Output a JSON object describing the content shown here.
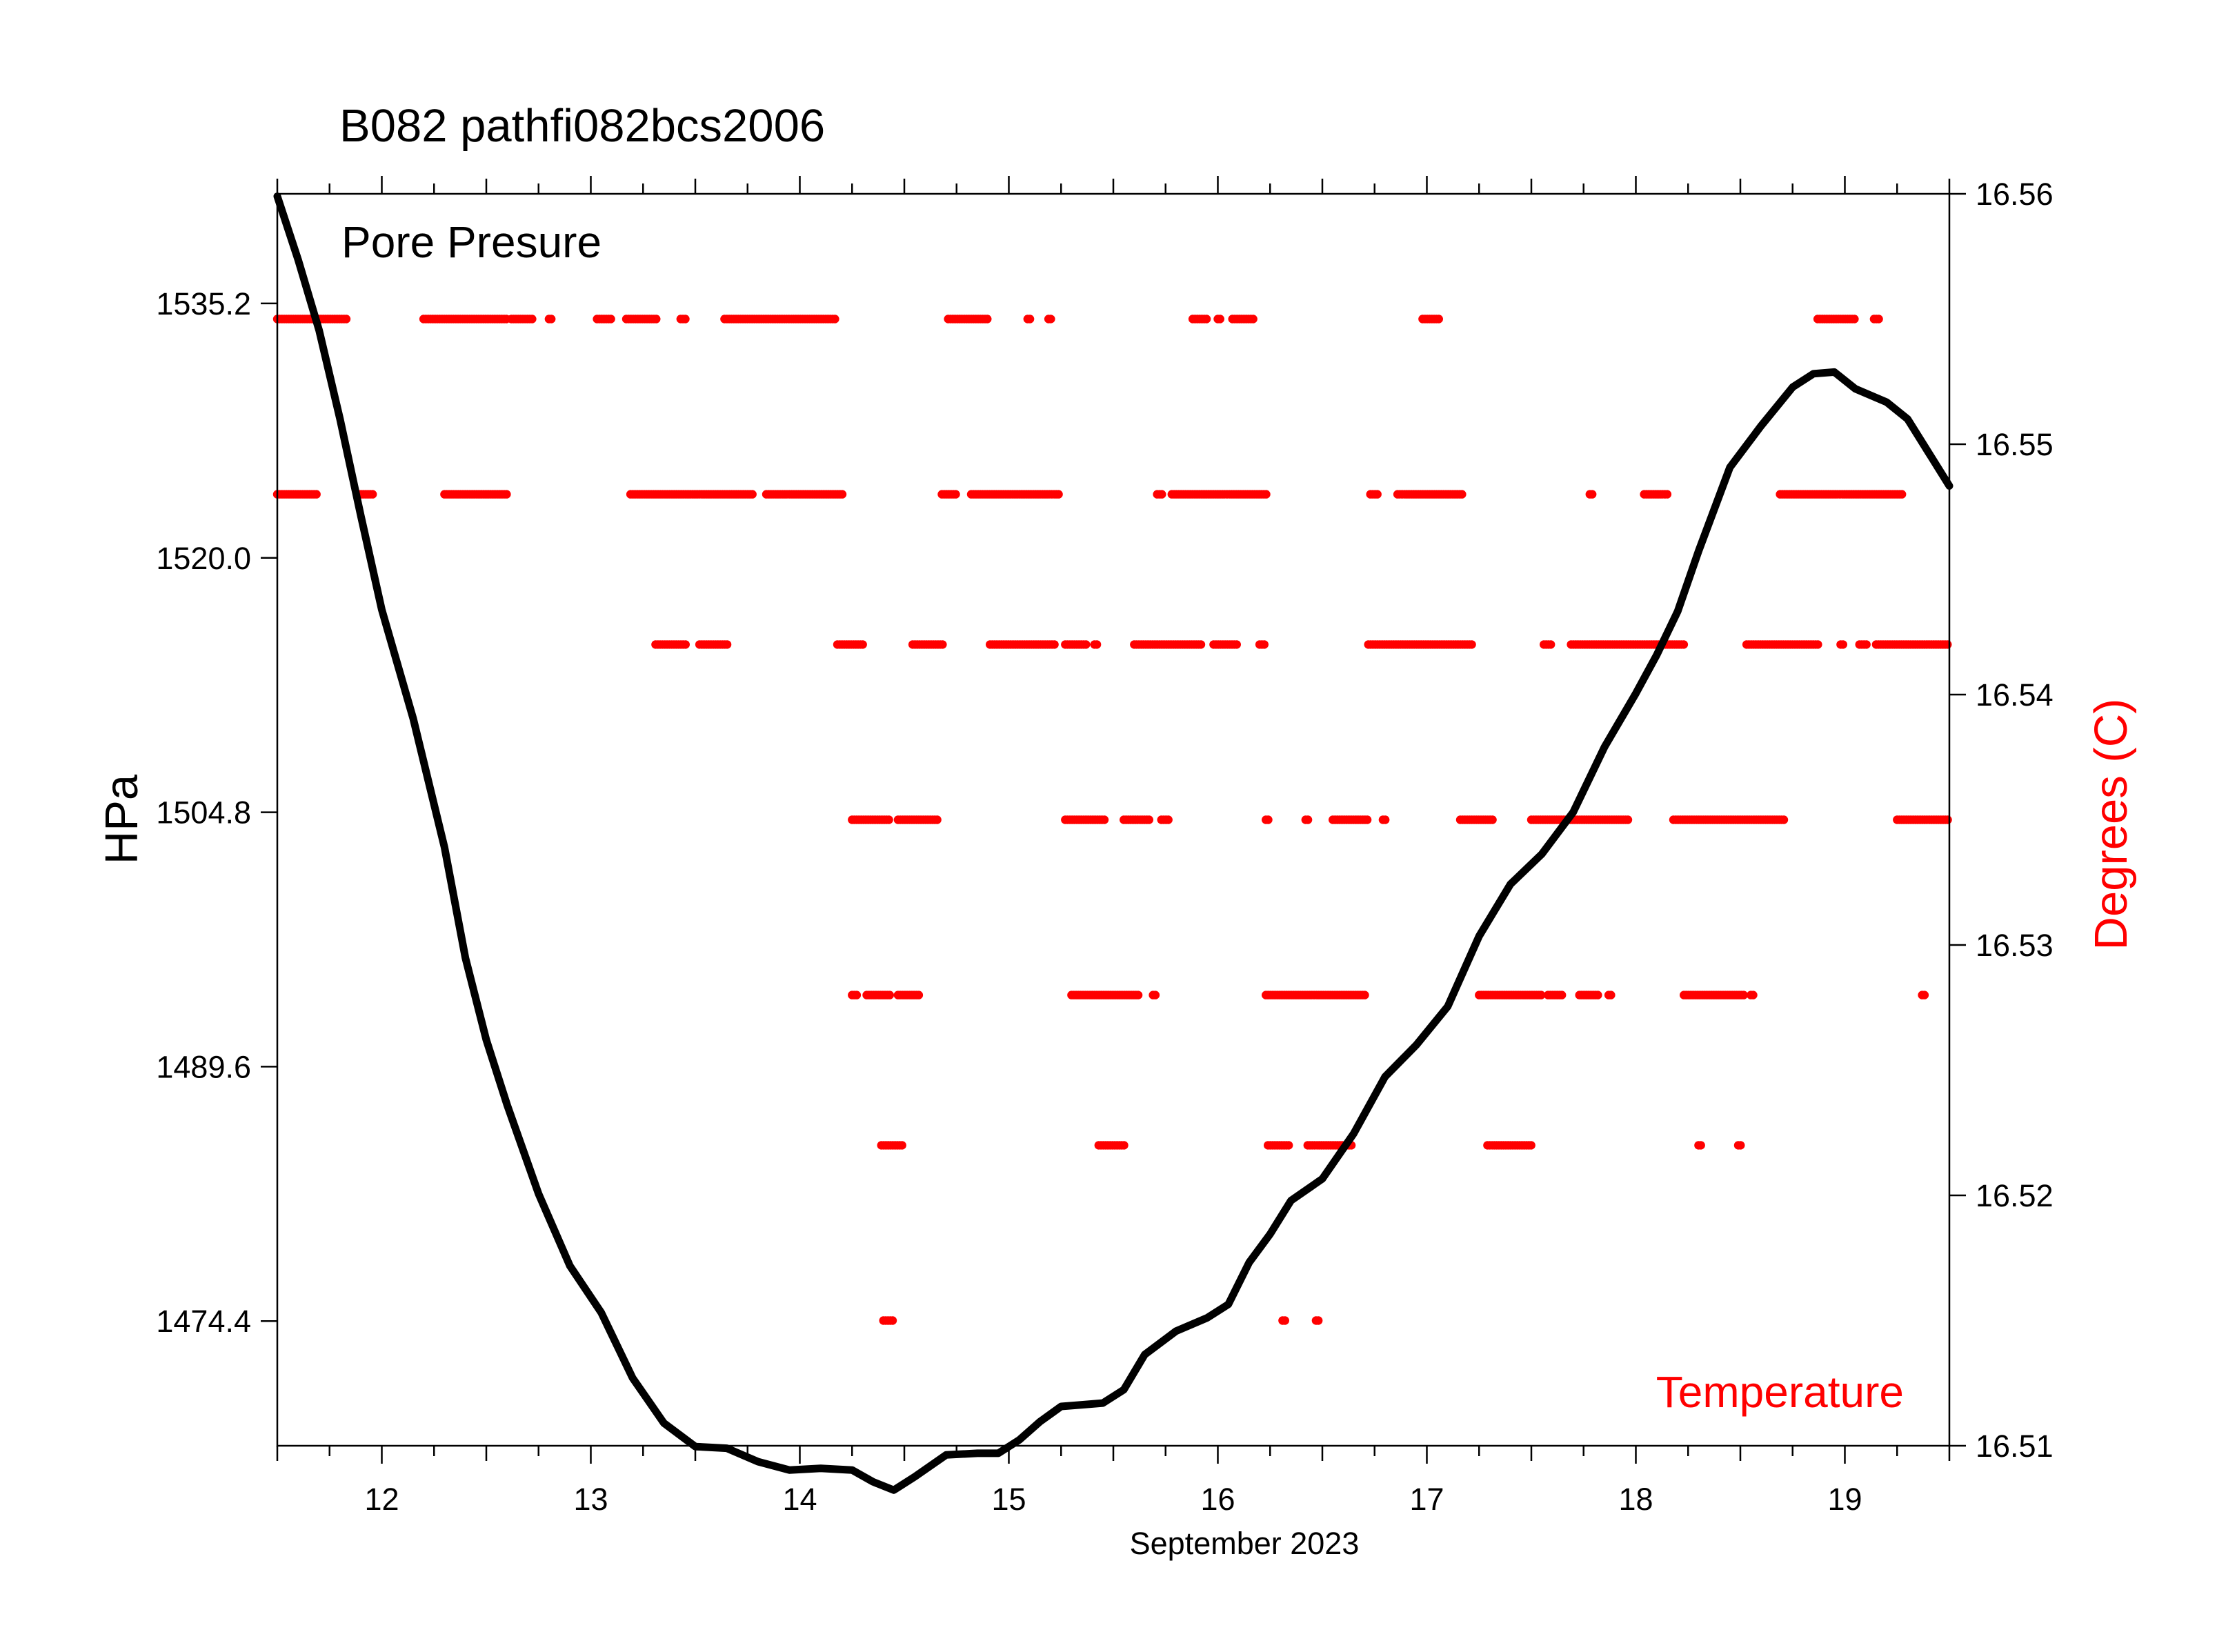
{
  "chart_data": {
    "type": "line",
    "title": "B082  pathfi082bcs2006",
    "xlabel": "September 2023",
    "x_tick_labels": [
      "12",
      "13",
      "14",
      "15",
      "16",
      "17",
      "18",
      "19"
    ],
    "xlim": [
      11.5,
      19.5
    ],
    "left_axis": {
      "label": "HPa",
      "ylim": [
        1466.95,
        1541.75
      ],
      "tick_labels": [
        "1474.4",
        "1489.6",
        "1504.8",
        "1520.0",
        "1535.2"
      ]
    },
    "right_axis": {
      "label": "Degrees (C)",
      "ylim": [
        16.51,
        16.56
      ],
      "tick_labels": [
        "16.51",
        "16.52",
        "16.53",
        "16.54",
        "16.55",
        "16.56"
      ]
    },
    "annotations": {
      "pressure": "Pore Presure",
      "temperature": "Temperature"
    },
    "grid": false,
    "colors": {
      "pressure": "#000000",
      "temperature": "#ff0000",
      "axes": "#000000"
    },
    "series": [
      {
        "name": "Pore Presure",
        "axis": "left",
        "style": "line",
        "x": [
          11.5,
          11.6,
          11.7,
          11.8,
          11.9,
          12.0,
          12.15,
          12.3,
          12.4,
          12.5,
          12.6,
          12.75,
          12.9,
          13.05,
          13.2,
          13.35,
          13.5,
          13.65,
          13.8,
          13.95,
          14.1,
          14.25,
          14.35,
          14.45,
          14.55,
          14.7,
          14.85,
          14.95,
          15.05,
          15.15,
          15.25,
          15.35,
          15.45,
          15.55,
          15.65,
          15.8,
          15.95,
          16.05,
          16.15,
          16.25,
          16.35,
          16.5,
          16.65,
          16.8,
          16.95,
          17.1,
          17.25,
          17.4,
          17.55,
          17.7,
          17.85,
          18.0,
          18.1,
          18.2,
          18.3,
          18.45,
          18.6,
          18.75,
          18.85,
          18.95,
          19.05,
          19.2,
          19.3,
          19.4,
          19.5
        ],
        "y": [
          1541.6,
          1537.8,
          1533.6,
          1528.3,
          1522.5,
          1516.9,
          1510.4,
          1502.7,
          1496.1,
          1491.2,
          1487.3,
          1482.0,
          1477.7,
          1474.9,
          1471.0,
          1468.3,
          1466.9,
          1466.8,
          1466.0,
          1465.5,
          1465.6,
          1465.5,
          1464.8,
          1464.3,
          1465.1,
          1466.4,
          1466.5,
          1466.5,
          1467.3,
          1468.4,
          1469.3,
          1469.4,
          1469.5,
          1470.3,
          1472.4,
          1473.8,
          1474.6,
          1475.4,
          1477.9,
          1479.6,
          1481.6,
          1482.9,
          1485.6,
          1489.0,
          1490.9,
          1493.2,
          1497.4,
          1500.5,
          1502.3,
          1504.8,
          1508.7,
          1511.9,
          1514.2,
          1516.8,
          1520.4,
          1525.4,
          1527.9,
          1530.2,
          1531.0,
          1531.1,
          1530.1,
          1529.3,
          1528.3,
          1526.3,
          1524.3
        ]
      },
      {
        "name": "Temperature",
        "axis": "right",
        "style": "scatter",
        "levels": [
          {
            "y": 16.555,
            "segments": [
              [
                11.5,
                11.84
              ],
              [
                12.2,
                12.6
              ],
              [
                12.62,
                12.72
              ],
              [
                12.8,
                12.82
              ],
              [
                13.03,
                13.1
              ],
              [
                13.17,
                13.32
              ],
              [
                13.43,
                13.46
              ],
              [
                13.64,
                14.17
              ],
              [
                14.71,
                14.9
              ],
              [
                15.09,
                15.11
              ],
              [
                15.19,
                15.21
              ],
              [
                15.88,
                15.95
              ],
              [
                16.0,
                16.02
              ],
              [
                16.07,
                16.17
              ],
              [
                16.98,
                17.06
              ],
              [
                18.87,
                19.05
              ],
              [
                19.14,
                19.17
              ]
            ]
          },
          {
            "y": 16.548,
            "segments": [
              [
                11.5,
                11.69
              ],
              [
                11.89,
                11.96
              ],
              [
                12.3,
                12.6
              ],
              [
                13.19,
                13.78
              ],
              [
                13.84,
                14.21
              ],
              [
                14.68,
                14.75
              ],
              [
                14.82,
                15.24
              ],
              [
                15.71,
                15.74
              ],
              [
                15.78,
                16.24
              ],
              [
                16.73,
                16.77
              ],
              [
                16.86,
                17.17
              ],
              [
                17.78,
                17.8
              ],
              [
                18.04,
                18.16
              ],
              [
                18.69,
                19.28
              ]
            ]
          },
          {
            "y": 16.542,
            "segments": [
              [
                13.31,
                13.46
              ],
              [
                13.52,
                13.66
              ],
              [
                14.18,
                14.31
              ],
              [
                14.54,
                14.69
              ],
              [
                14.91,
                15.22
              ],
              [
                15.27,
                15.37
              ],
              [
                15.41,
                15.43
              ],
              [
                15.6,
                15.92
              ],
              [
                15.98,
                16.1
              ],
              [
                16.2,
                16.23
              ],
              [
                16.72,
                17.22
              ],
              [
                17.56,
                17.6
              ],
              [
                17.69,
                18.23
              ],
              [
                18.53,
                18.88
              ],
              [
                18.98,
                19.0
              ],
              [
                19.07,
                19.11
              ],
              [
                19.15,
                19.5
              ]
            ]
          },
          {
            "y": 16.535,
            "segments": [
              [
                14.25,
                14.43
              ],
              [
                14.47,
                14.66
              ],
              [
                15.27,
                15.46
              ],
              [
                15.55,
                15.68
              ],
              [
                15.73,
                15.77
              ],
              [
                16.23,
                16.25
              ],
              [
                16.42,
                16.44
              ],
              [
                16.55,
                16.72
              ],
              [
                16.79,
                16.81
              ],
              [
                17.16,
                17.32
              ],
              [
                17.5,
                17.97
              ],
              [
                18.18,
                18.71
              ],
              [
                19.25,
                19.5
              ]
            ]
          },
          {
            "y": 16.528,
            "segments": [
              [
                14.25,
                14.28
              ],
              [
                14.32,
                14.43
              ],
              [
                14.47,
                14.57
              ],
              [
                15.3,
                15.62
              ],
              [
                15.69,
                15.71
              ],
              [
                16.23,
                16.71
              ],
              [
                17.25,
                17.55
              ],
              [
                17.58,
                17.65
              ],
              [
                17.73,
                17.82
              ],
              [
                17.87,
                17.89
              ],
              [
                18.23,
                18.52
              ],
              [
                18.55,
                18.57
              ],
              [
                19.37,
                19.39
              ]
            ]
          },
          {
            "y": 16.522,
            "segments": [
              [
                14.39,
                14.49
              ],
              [
                15.43,
                15.56
              ],
              [
                16.24,
                16.34
              ],
              [
                16.43,
                16.64
              ],
              [
                17.29,
                17.5
              ],
              [
                18.3,
                18.32
              ],
              [
                18.49,
                18.51
              ]
            ]
          },
          {
            "y": 16.515,
            "segments": [
              [
                14.4,
                14.45
              ],
              [
                16.31,
                16.33
              ],
              [
                16.47,
                16.49
              ]
            ]
          }
        ]
      }
    ]
  }
}
